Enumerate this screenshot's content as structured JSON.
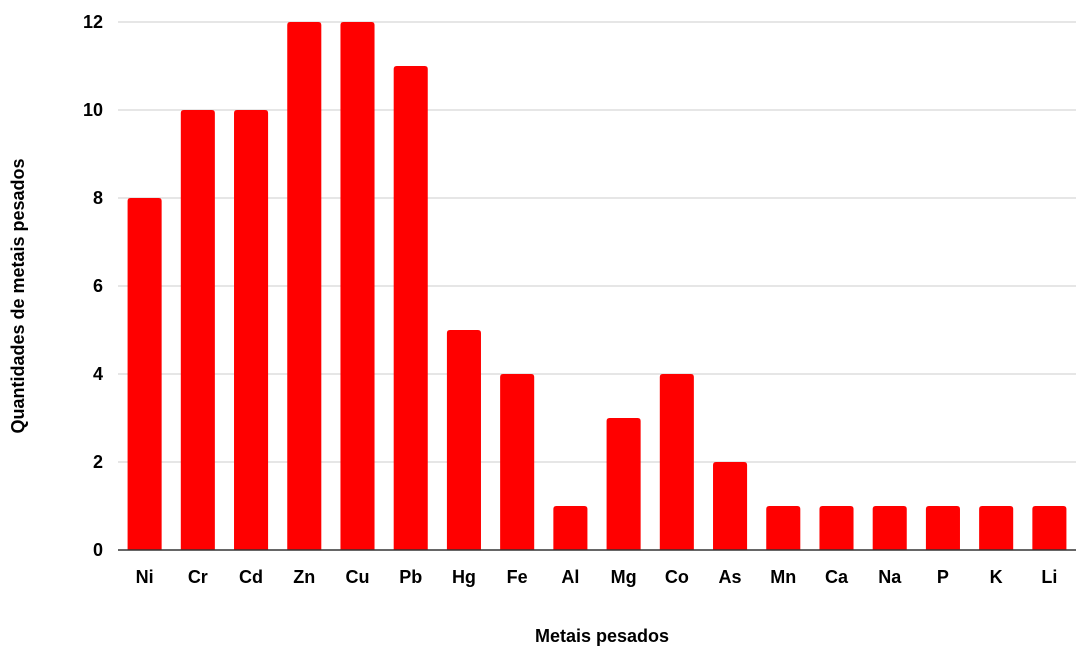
{
  "chart_data": {
    "type": "bar",
    "title": "",
    "xlabel": "Metais pesados",
    "ylabel": "Quantidades de metais pesados",
    "categories": [
      "Ni",
      "Cr",
      "Cd",
      "Zn",
      "Cu",
      "Pb",
      "Hg",
      "Fe",
      "Al",
      "Mg",
      "Co",
      "As",
      "Mn",
      "Ca",
      "Na",
      "P",
      "K",
      "Li"
    ],
    "values": [
      8,
      10,
      10,
      12,
      12,
      11,
      5,
      4,
      1,
      3,
      4,
      2,
      1,
      1,
      1,
      1,
      1,
      1
    ],
    "ylim": [
      0,
      12
    ],
    "yticks": [
      0,
      2,
      4,
      6,
      8,
      10,
      12
    ],
    "grid": true,
    "legend": "none",
    "bar_color": "#ff0000"
  }
}
